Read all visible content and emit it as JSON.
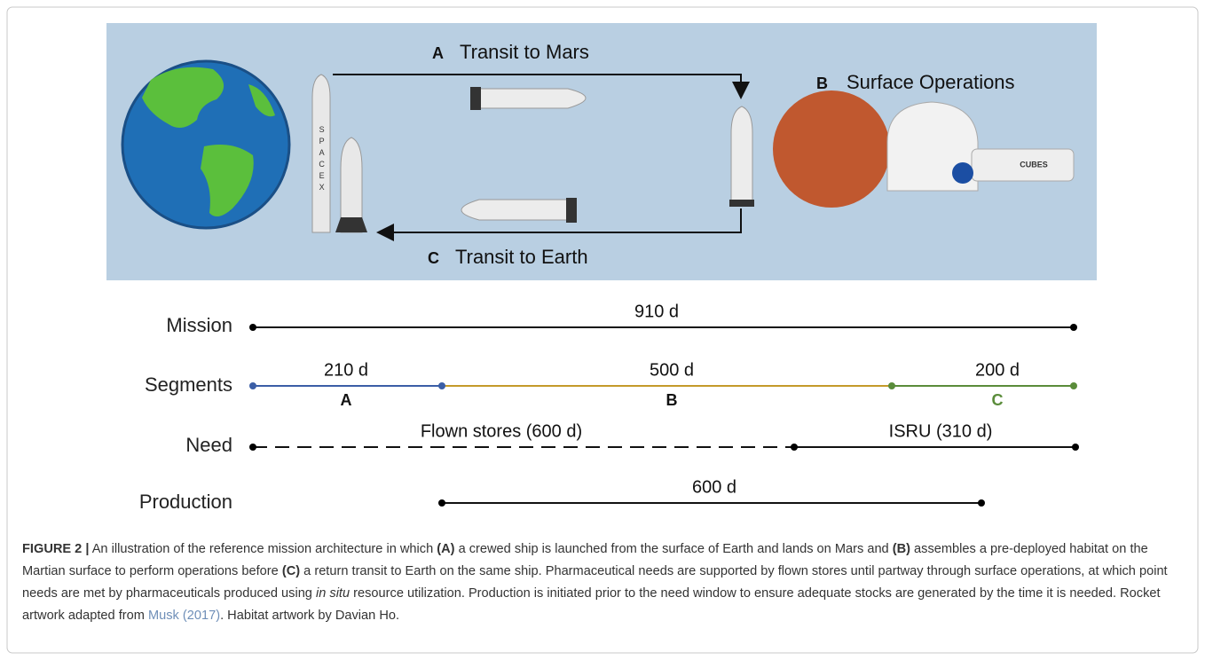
{
  "illustration": {
    "labels": [
      {
        "letter": "A",
        "text": "Transit to Mars"
      },
      {
        "letter": "B",
        "text": "Surface Operations"
      },
      {
        "letter": "C",
        "text": "Transit to Earth"
      }
    ],
    "rocket_text": "SPACEX",
    "habitat_text": "CUBES"
  },
  "timeline": {
    "mission": {
      "label": "Mission",
      "duration": "910 d"
    },
    "segments": {
      "label": "Segments",
      "items": [
        {
          "duration": "210 d",
          "letter": "A"
        },
        {
          "duration": "500 d",
          "letter": "B"
        },
        {
          "duration": "200 d",
          "letter": "C"
        }
      ]
    },
    "need": {
      "label": "Need",
      "items": [
        "Flown stores (600 d)",
        "ISRU (310 d)"
      ]
    },
    "production": {
      "label": "Production",
      "duration": "600 d"
    }
  },
  "caption": {
    "runs": [
      {
        "text": "FIGURE 2 |",
        "bold": true
      },
      {
        "text": " An illustration of the reference mission architecture in which "
      },
      {
        "text": "(A)",
        "bold": true
      },
      {
        "text": " a crewed ship is launched from the surface of Earth and lands on Mars and "
      },
      {
        "text": "(B)",
        "bold": true
      },
      {
        "text": " assembles a pre-deployed habitat on the Martian surface to perform operations before "
      },
      {
        "text": "(C)",
        "bold": true
      },
      {
        "text": " a return transit to Earth on the same ship. Pharmaceutical needs are supported by flown stores until partway through surface operations, at which point needs are met by pharmaceuticals produced using "
      },
      {
        "text": "in situ",
        "italic": true
      },
      {
        "text": " resource utilization. Production is initiated prior to the need window to ensure adequate stocks are generated by the time it is needed. Rocket artwork adapted from "
      },
      {
        "text": "Musk (2017)",
        "link": true
      },
      {
        "text": ". Habitat artwork by Davian Ho."
      }
    ]
  }
}
